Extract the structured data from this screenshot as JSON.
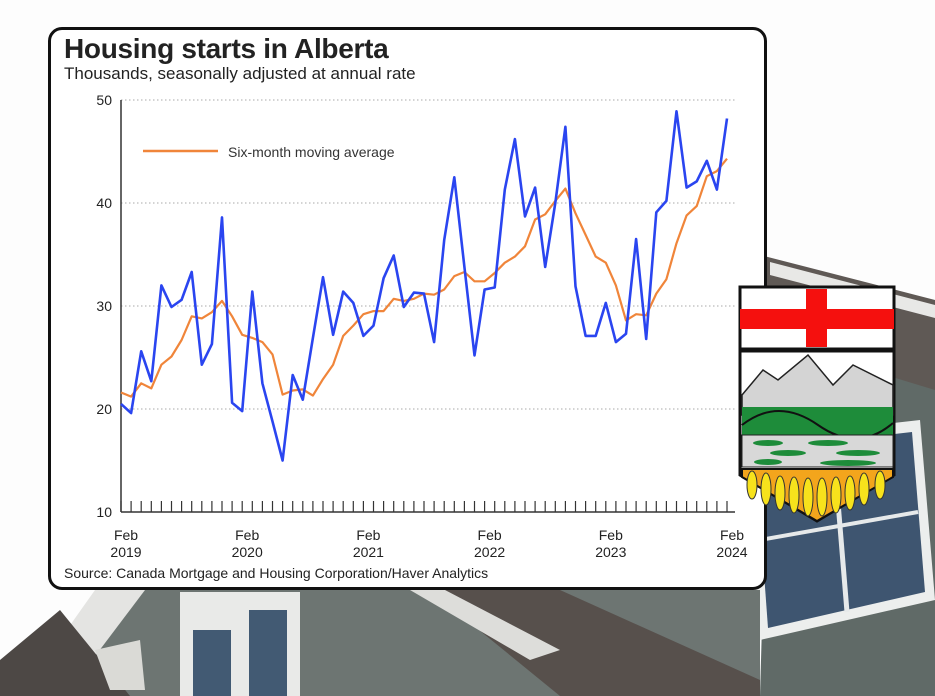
{
  "title": "Housing starts in Alberta",
  "subtitle": "Thousands, seasonally adjusted at annual rate",
  "source": "Source: Canada Mortgage and Housing Corporation/Haver Analytics",
  "emblem": "Alberta coat of arms shield",
  "chart_data": {
    "type": "line",
    "title": "Housing starts in Alberta",
    "subtitle": "Thousands, seasonally adjusted at annual rate",
    "x_start": "Feb 2019",
    "x_end": "Feb 2024",
    "x_frequency": "monthly",
    "x_tick_labels": [
      [
        "Feb",
        "2019"
      ],
      [
        "Feb",
        "2020"
      ],
      [
        "Feb",
        "2021"
      ],
      [
        "Feb",
        "2022"
      ],
      [
        "Feb",
        "2023"
      ],
      [
        "Feb",
        "2024"
      ]
    ],
    "y_ticks": [
      "10",
      "20",
      "30",
      "40",
      "50"
    ],
    "ylim": [
      10,
      50
    ],
    "grid": "horizontal dotted",
    "legend": {
      "placement": "top-left",
      "entries": [
        "Six-month moving average"
      ]
    },
    "series": [
      {
        "color": "#2a45f0",
        "values": [
          20.5,
          19.6,
          25.6,
          22.7,
          32.0,
          29.9,
          30.6,
          33.3,
          24.3,
          26.3,
          38.6,
          20.6,
          19.8,
          31.4,
          22.5,
          18.8,
          15.0,
          23.3,
          20.9,
          26.9,
          32.8,
          27.2,
          31.4,
          30.3,
          27.1,
          28.1,
          32.7,
          34.9,
          29.9,
          31.3,
          31.2,
          26.5,
          36.4,
          42.5,
          33.8,
          25.2,
          31.6,
          31.8,
          41.3,
          46.2,
          38.7,
          41.5,
          33.8,
          40.0,
          47.4,
          31.9,
          27.1,
          27.1,
          30.3,
          26.5,
          27.3,
          36.5,
          26.8,
          39.1,
          40.2,
          48.9,
          41.5,
          42.1,
          44.1,
          41.3,
          48.2
        ]
      },
      {
        "name": "Six-month moving average",
        "color": "#f0853a",
        "values": [
          21.6,
          21.2,
          22.5,
          22.0,
          24.3,
          25.1,
          26.7,
          29.0,
          28.8,
          29.4,
          30.5,
          29.0,
          27.2,
          26.9,
          26.5,
          25.3,
          21.4,
          21.8,
          21.9,
          21.3,
          22.9,
          24.3,
          27.1,
          28.1,
          29.2,
          29.5,
          29.5,
          30.7,
          30.5,
          30.7,
          31.2,
          31.1,
          31.6,
          32.9,
          33.3,
          32.4,
          32.4,
          33.2,
          34.2,
          34.8,
          35.8,
          38.4,
          38.9,
          40.2,
          41.4,
          39.0,
          36.9,
          34.8,
          34.2,
          32.0,
          28.6,
          29.2,
          29.1,
          31.2,
          32.6,
          36.1,
          38.8,
          39.7,
          42.6,
          43.1,
          44.3
        ]
      }
    ]
  }
}
